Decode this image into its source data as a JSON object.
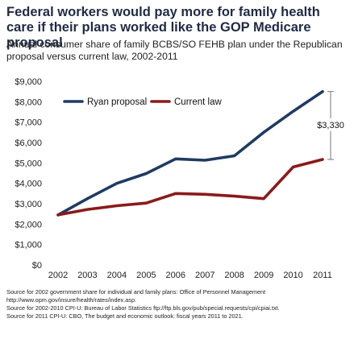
{
  "chart_data": {
    "type": "line",
    "title": "Federal workers would pay more for family health care if their plans worked like the GOP Medicare proposal",
    "subtitle": "Annual consumer share of family BCBS/SO FEHB plan under the Republican proposal versus current law, 2002-2011",
    "xlabel": "",
    "ylabel": "",
    "categories": [
      "2002",
      "2003",
      "2004",
      "2005",
      "2006",
      "2007",
      "2008",
      "2009",
      "2010",
      "2011"
    ],
    "ylim": [
      0,
      9000
    ],
    "yticks": [
      "$0",
      "$1,000",
      "$2,000",
      "$3,000",
      "$4,000",
      "$5,000",
      "$6,000",
      "$7,000",
      "$8,000",
      "$9,000"
    ],
    "grid": false,
    "legend_position": "top",
    "series": [
      {
        "name": "Ryan proposal",
        "color": "#1f3b63",
        "values": [
          2450,
          3250,
          4000,
          4480,
          5200,
          5130,
          5350,
          6500,
          7530,
          8500
        ]
      },
      {
        "name": "Current law",
        "color": "#8b1a1a",
        "values": [
          2450,
          2720,
          2900,
          3030,
          3500,
          3460,
          3370,
          3250,
          4800,
          5170
        ]
      }
    ],
    "annotation": {
      "label": "$3,330",
      "x": "2011",
      "from": 5170,
      "to": 8500
    }
  },
  "sources": [
    "Source for 2002 government share for individual and family plans: Office of Personnel Management",
    "http://www.opm.gov/insure/health/rates/index.asp.",
    "Source for 2002-2010 CPI-U: Bureau of Labor Statistics ftp://ftp.bls.gov/pub/special.requests/cpi/cpiai.txt.",
    "Source for 2011 CPI-U: CBO, The budget and economic outlook: fiscal years 2011 to 2021."
  ]
}
